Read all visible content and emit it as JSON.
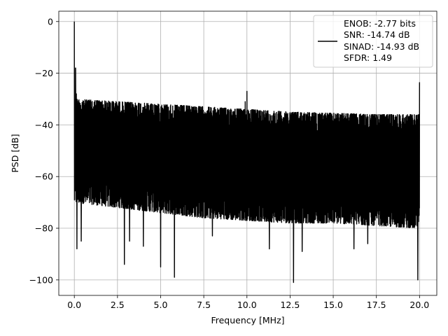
{
  "chart_data": {
    "type": "line",
    "title": "",
    "xlabel": "Frequency [MHz]",
    "ylabel": "PSD [dB]",
    "xlim": [
      -0.9,
      21.0
    ],
    "ylim": [
      -106,
      4
    ],
    "xticks": [
      0.0,
      2.5,
      5.0,
      7.5,
      10.0,
      12.5,
      15.0,
      17.5,
      20.0
    ],
    "xtick_labels": [
      "0.0",
      "2.5",
      "5.0",
      "7.5",
      "10.0",
      "12.5",
      "15.0",
      "17.5",
      "20.0"
    ],
    "yticks": [
      0,
      -20,
      -40,
      -60,
      -80,
      -100
    ],
    "ytick_labels": [
      "0",
      "−20",
      "−40",
      "−60",
      "−80",
      "−100"
    ],
    "grid": true,
    "legend_position": "upper-right",
    "legend": {
      "lines": [
        "ENOB: -2.77 bits",
        "SNR: -14.74 dB",
        "SINAD: -14.93 dB",
        "SFDR: 1.49"
      ]
    },
    "series": [
      {
        "color": "#000000",
        "x_range": [
          0,
          20
        ],
        "upper_envelope": {
          "x": [
            0,
            2.5,
            5,
            7.5,
            10,
            12.5,
            15,
            17.5,
            20
          ],
          "y": [
            -30,
            -31,
            -32,
            -33,
            -34,
            -35,
            -35.5,
            -36,
            -36
          ]
        },
        "lower_envelope": {
          "x": [
            0,
            2.5,
            5,
            7.5,
            10,
            12.5,
            15,
            17.5,
            20
          ],
          "y": [
            -70,
            -72,
            -74,
            -76,
            -77,
            -78,
            -78,
            -79,
            -80
          ]
        },
        "peaks": [
          {
            "x": 0.0,
            "y": 0.0
          },
          {
            "x": 0.07,
            "y": -18
          },
          {
            "x": 0.12,
            "y": -28
          },
          {
            "x": 10.0,
            "y": -27
          },
          {
            "x": 20.0,
            "y": -23.5
          },
          {
            "x": 9.9,
            "y": -31
          }
        ],
        "dips": [
          {
            "x": 0.15,
            "y": -88
          },
          {
            "x": 0.4,
            "y": -85
          },
          {
            "x": 2.9,
            "y": -94
          },
          {
            "x": 3.2,
            "y": -85
          },
          {
            "x": 4.0,
            "y": -87
          },
          {
            "x": 5.0,
            "y": -95
          },
          {
            "x": 5.8,
            "y": -99
          },
          {
            "x": 8.0,
            "y": -83
          },
          {
            "x": 11.3,
            "y": -88
          },
          {
            "x": 12.7,
            "y": -101
          },
          {
            "x": 13.2,
            "y": -89
          },
          {
            "x": 16.2,
            "y": -88
          },
          {
            "x": 17.0,
            "y": -86
          },
          {
            "x": 19.9,
            "y": -100
          }
        ]
      }
    ]
  }
}
